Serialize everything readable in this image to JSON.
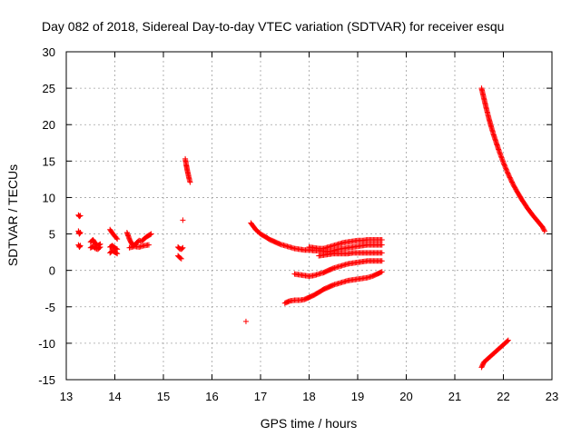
{
  "chart_data": {
    "type": "scatter",
    "title": "Day 082 of 2018, Sidereal Day-to-day VTEC variation (SDTVAR) for receiver esqu",
    "xlabel": "GPS time / hours",
    "ylabel": "SDTVAR / TECUs",
    "xlim": [
      13,
      23
    ],
    "ylim": [
      -15,
      30
    ],
    "xticks": [
      "13",
      "14",
      "15",
      "16",
      "17",
      "18",
      "19",
      "20",
      "21",
      "22",
      "23"
    ],
    "yticks": [
      "-15",
      "-10",
      "-5",
      "0",
      "5",
      "10",
      "15",
      "20",
      "25",
      "30"
    ],
    "grid": true,
    "marker": "plus",
    "color": "#ff0000",
    "series": [
      {
        "name": "sdtvar",
        "segments": [
          [
            [
              13.25,
              7.6
            ],
            [
              13.27,
              7.4
            ],
            [
              13.29,
              7.5
            ]
          ],
          [
            [
              13.25,
              5.4
            ],
            [
              13.27,
              5.0
            ],
            [
              13.29,
              5.2
            ]
          ],
          [
            [
              13.25,
              3.5
            ],
            [
              13.27,
              3.2
            ],
            [
              13.29,
              3.4
            ]
          ],
          [
            [
              13.5,
              3.9
            ],
            [
              13.55,
              4.2
            ],
            [
              13.6,
              3.7
            ],
            [
              13.65,
              3.4
            ],
            [
              13.7,
              3.6
            ]
          ],
          [
            [
              13.5,
              3.1
            ],
            [
              13.55,
              3.3
            ],
            [
              13.6,
              3.0
            ],
            [
              13.65,
              2.9
            ],
            [
              13.7,
              3.2
            ]
          ],
          [
            [
              13.9,
              5.6
            ],
            [
              13.95,
              5.1
            ],
            [
              14.0,
              4.7
            ],
            [
              14.05,
              4.3
            ]
          ],
          [
            [
              13.9,
              3.2
            ],
            [
              13.95,
              3.4
            ],
            [
              14.0,
              3.1
            ],
            [
              14.05,
              2.9
            ]
          ],
          [
            [
              13.9,
              2.4
            ],
            [
              13.95,
              2.7
            ],
            [
              14.0,
              2.5
            ],
            [
              14.05,
              2.3
            ]
          ],
          [
            [
              14.25,
              5.2
            ],
            [
              14.3,
              4.3
            ],
            [
              14.35,
              3.6
            ],
            [
              14.4,
              3.4
            ],
            [
              14.45,
              3.8
            ],
            [
              14.5,
              4.1
            ],
            [
              14.55,
              4.0
            ],
            [
              14.6,
              4.3
            ],
            [
              14.65,
              4.6
            ],
            [
              14.7,
              4.8
            ],
            [
              14.75,
              5.0
            ]
          ],
          [
            [
              14.3,
              3.1
            ],
            [
              14.4,
              3.3
            ],
            [
              14.5,
              3.2
            ],
            [
              14.6,
              3.4
            ],
            [
              14.7,
              3.5
            ]
          ],
          [
            [
              15.3,
              3.2
            ],
            [
              15.33,
              3.0
            ],
            [
              15.37,
              2.9
            ],
            [
              15.4,
              3.1
            ]
          ],
          [
            [
              15.3,
              2.0
            ],
            [
              15.33,
              1.8
            ],
            [
              15.37,
              1.6
            ]
          ],
          [
            [
              15.4,
              6.9
            ]
          ],
          [
            [
              15.45,
              15.3
            ],
            [
              15.47,
              14.5
            ],
            [
              15.49,
              13.8
            ],
            [
              15.51,
              13.2
            ],
            [
              15.53,
              12.6
            ],
            [
              15.55,
              12.1
            ]
          ],
          [
            [
              16.7,
              -7.0
            ]
          ],
          [
            [
              16.8,
              6.5
            ],
            [
              16.9,
              5.6
            ],
            [
              17.0,
              5.0
            ],
            [
              17.1,
              4.6
            ],
            [
              17.2,
              4.2
            ],
            [
              17.3,
              3.9
            ],
            [
              17.4,
              3.6
            ],
            [
              17.5,
              3.4
            ],
            [
              17.6,
              3.2
            ],
            [
              17.7,
              3.0
            ],
            [
              17.8,
              2.9
            ],
            [
              17.9,
              2.8
            ],
            [
              18.0,
              2.8
            ],
            [
              18.1,
              2.7
            ],
            [
              18.2,
              2.7
            ],
            [
              18.3,
              2.6
            ],
            [
              18.4,
              2.6
            ],
            [
              18.5,
              2.7
            ],
            [
              18.6,
              2.9
            ],
            [
              18.7,
              3.0
            ],
            [
              18.8,
              3.1
            ],
            [
              18.9,
              3.2
            ],
            [
              19.0,
              3.3
            ],
            [
              19.1,
              3.4
            ],
            [
              19.2,
              3.5
            ],
            [
              19.3,
              3.5
            ],
            [
              19.4,
              3.5
            ],
            [
              19.5,
              3.5
            ]
          ],
          [
            [
              18.0,
              3.2
            ],
            [
              18.1,
              3.1
            ],
            [
              18.2,
              3.0
            ],
            [
              18.3,
              3.0
            ],
            [
              18.4,
              3.2
            ],
            [
              18.5,
              3.4
            ],
            [
              18.6,
              3.6
            ],
            [
              18.7,
              3.8
            ],
            [
              18.8,
              3.9
            ],
            [
              18.9,
              4.0
            ],
            [
              19.0,
              4.1
            ],
            [
              19.1,
              4.1
            ],
            [
              19.2,
              4.2
            ],
            [
              19.3,
              4.2
            ],
            [
              19.4,
              4.2
            ],
            [
              19.5,
              4.2
            ]
          ],
          [
            [
              18.2,
              2.0
            ],
            [
              18.3,
              2.1
            ],
            [
              18.4,
              2.2
            ],
            [
              18.5,
              2.3
            ],
            [
              18.6,
              2.3
            ],
            [
              18.7,
              2.3
            ],
            [
              18.8,
              2.3
            ],
            [
              18.9,
              2.4
            ],
            [
              19.0,
              2.4
            ],
            [
              19.1,
              2.4
            ],
            [
              19.2,
              2.4
            ],
            [
              19.3,
              2.4
            ],
            [
              19.4,
              2.4
            ],
            [
              19.5,
              2.4
            ]
          ],
          [
            [
              17.7,
              -0.5
            ],
            [
              17.8,
              -0.6
            ],
            [
              17.9,
              -0.7
            ],
            [
              18.0,
              -0.8
            ],
            [
              18.1,
              -0.7
            ],
            [
              18.2,
              -0.5
            ],
            [
              18.3,
              -0.3
            ],
            [
              18.4,
              0.0
            ],
            [
              18.5,
              0.3
            ],
            [
              18.6,
              0.5
            ],
            [
              18.7,
              0.7
            ],
            [
              18.8,
              0.9
            ],
            [
              18.9,
              1.0
            ],
            [
              19.0,
              1.1
            ],
            [
              19.1,
              1.2
            ],
            [
              19.2,
              1.3
            ],
            [
              19.3,
              1.3
            ],
            [
              19.4,
              1.3
            ],
            [
              19.5,
              1.3
            ]
          ],
          [
            [
              17.5,
              -4.5
            ],
            [
              17.6,
              -4.2
            ],
            [
              17.7,
              -4.1
            ],
            [
              17.8,
              -4.1
            ],
            [
              17.9,
              -4.0
            ],
            [
              18.0,
              -3.7
            ],
            [
              18.1,
              -3.4
            ],
            [
              18.2,
              -3.0
            ],
            [
              18.3,
              -2.6
            ],
            [
              18.4,
              -2.3
            ],
            [
              18.5,
              -2.0
            ],
            [
              18.6,
              -1.8
            ],
            [
              18.7,
              -1.6
            ],
            [
              18.8,
              -1.4
            ],
            [
              18.9,
              -1.3
            ],
            [
              19.0,
              -1.2
            ],
            [
              19.1,
              -1.1
            ],
            [
              19.2,
              -1.0
            ],
            [
              19.3,
              -0.8
            ],
            [
              19.4,
              -0.5
            ],
            [
              19.5,
              -0.2
            ]
          ],
          [
            [
              21.55,
              25.0
            ],
            [
              21.6,
              23.6
            ],
            [
              21.65,
              22.2
            ],
            [
              21.7,
              20.9
            ],
            [
              21.75,
              19.7
            ],
            [
              21.8,
              18.6
            ],
            [
              21.9,
              16.6
            ],
            [
              22.0,
              14.8
            ],
            [
              22.1,
              13.2
            ],
            [
              22.2,
              11.8
            ],
            [
              22.3,
              10.6
            ],
            [
              22.4,
              9.5
            ],
            [
              22.5,
              8.5
            ],
            [
              22.6,
              7.6
            ],
            [
              22.7,
              6.8
            ],
            [
              22.8,
              6.0
            ],
            [
              22.85,
              5.4
            ]
          ],
          [
            [
              21.55,
              -13.3
            ],
            [
              21.6,
              -12.6
            ],
            [
              21.7,
              -12.0
            ],
            [
              21.8,
              -11.4
            ],
            [
              21.9,
              -10.8
            ],
            [
              22.0,
              -10.2
            ],
            [
              22.1,
              -9.6
            ]
          ]
        ]
      }
    ]
  }
}
